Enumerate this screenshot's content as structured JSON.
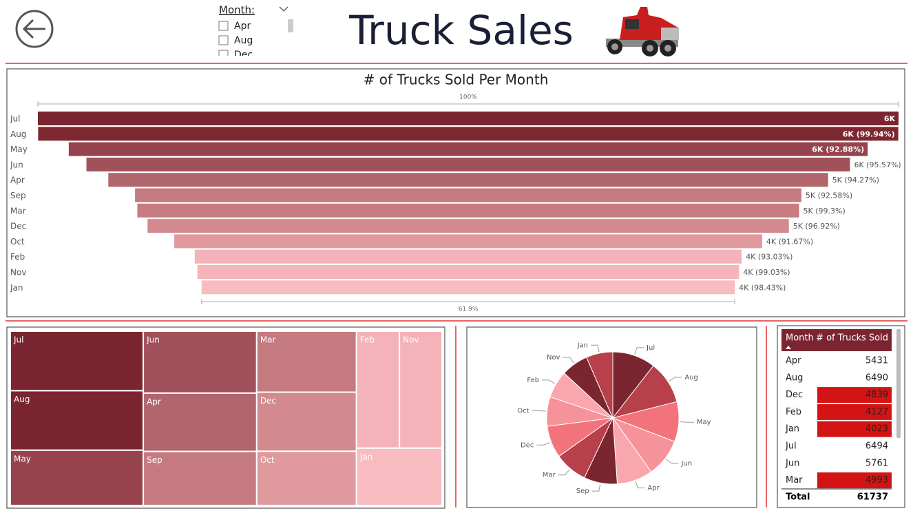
{
  "header": {
    "title": "Truck Sales"
  },
  "slicer": {
    "label": "Month:",
    "items": [
      "Apr",
      "Aug",
      "Dec"
    ]
  },
  "chart_data": [
    {
      "type": "funnel",
      "title": "# of Trucks Sold Per Month",
      "top_annotation": "100%",
      "bottom_annotation": "61.9%",
      "categories": [
        "Jul",
        "Aug",
        "May",
        "Jun",
        "Apr",
        "Sep",
        "Mar",
        "Dec",
        "Oct",
        "Feb",
        "Nov",
        "Jan"
      ],
      "values": [
        6494,
        6490,
        6028,
        5761,
        5431,
        5028,
        4993,
        4839,
        4436,
        4127,
        4087,
        4023
      ],
      "value_labels": [
        "6K",
        "6K (99.94%)",
        "6K (92.88%)",
        "6K (95.57%)",
        "5K (94.27%)",
        "5K (92.58%)",
        "5K (99.3%)",
        "5K (96.92%)",
        "4K (91.67%)",
        "4K (93.03%)",
        "4K (99.03%)",
        "4K (98.43%)"
      ],
      "colors": [
        "#7b2530",
        "#7d2731",
        "#96434d",
        "#a0515a",
        "#b0666c",
        "#c47a7f",
        "#c67c81",
        "#d28a8e",
        "#e09a9e",
        "#f4b3b8",
        "#f5b5b9",
        "#f8bcc0"
      ]
    },
    {
      "type": "treemap",
      "categories": [
        "Jul",
        "Aug",
        "May",
        "Jun",
        "Apr",
        "Sep",
        "Mar",
        "Dec",
        "Oct",
        "Feb",
        "Nov",
        "Jan"
      ],
      "values": [
        6494,
        6490,
        6028,
        5761,
        5431,
        5028,
        4993,
        4839,
        4436,
        4127,
        4087,
        4023
      ],
      "colors": [
        "#7b2530",
        "#7b2530",
        "#96434d",
        "#a0515a",
        "#b0666c",
        "#c47a7f",
        "#c47a7f",
        "#d28a8e",
        "#e09a9e",
        "#f4b3b8",
        "#f4b3b8",
        "#f8bcc0"
      ]
    },
    {
      "type": "pie",
      "categories": [
        "Jul",
        "Aug",
        "May",
        "Jun",
        "Apr",
        "Sep",
        "Mar",
        "Dec",
        "Oct",
        "Feb",
        "Nov",
        "Jan"
      ],
      "values": [
        6494,
        6490,
        6028,
        5761,
        5431,
        5028,
        4993,
        4839,
        4436,
        4127,
        4087,
        4023
      ],
      "colors": [
        "#7b2530",
        "#b7404a",
        "#f2737c",
        "#f6939a",
        "#f9a7ad",
        "#7b2530",
        "#b7404a",
        "#f2737c",
        "#f6939a",
        "#f9a7ad",
        "#7b2530",
        "#b7404a"
      ]
    }
  ],
  "table": {
    "columns": [
      "Month",
      "# of Trucks Sold"
    ],
    "rows": [
      [
        "Apr",
        5431
      ],
      [
        "Aug",
        6490
      ],
      [
        "Dec",
        4839
      ],
      [
        "Feb",
        4127
      ],
      [
        "Jan",
        4023
      ],
      [
        "Jul",
        6494
      ],
      [
        "Jun",
        5761
      ],
      [
        "Mar",
        4993
      ]
    ],
    "highlight": [
      false,
      false,
      true,
      true,
      true,
      false,
      false,
      true
    ],
    "highlight_color": "#d41414",
    "header_color": "#7b2530",
    "total": [
      "Total",
      61737
    ]
  }
}
